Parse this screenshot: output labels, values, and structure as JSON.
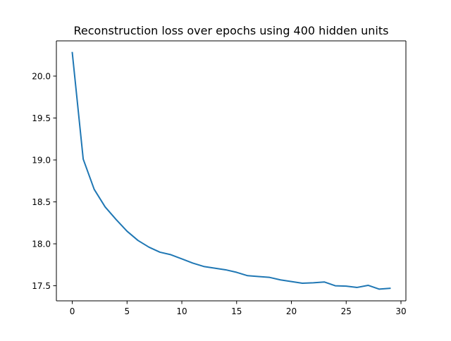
{
  "chart_data": {
    "type": "line",
    "title": "Reconstruction loss over epochs using 400 hidden units",
    "xlabel": "",
    "ylabel": "",
    "xlim": [
      -1.45,
      30.45
    ],
    "ylim": [
      17.32,
      20.42
    ],
    "grid": false,
    "legend": "none",
    "x_ticks": [
      0,
      5,
      10,
      15,
      20,
      25,
      30
    ],
    "x_tick_labels": [
      "0",
      "5",
      "10",
      "15",
      "20",
      "25",
      "30"
    ],
    "y_ticks": [
      17.5,
      18.0,
      18.5,
      19.0,
      19.5,
      20.0
    ],
    "y_tick_labels": [
      "17.5",
      "18.0",
      "18.5",
      "19.0",
      "19.5",
      "20.0"
    ],
    "series": [
      {
        "color": "#1f77b4",
        "x": [
          0,
          1,
          2,
          3,
          4,
          5,
          6,
          7,
          8,
          9,
          10,
          11,
          12,
          13,
          14,
          15,
          16,
          17,
          18,
          19,
          20,
          21,
          22,
          23,
          24,
          25,
          26,
          27,
          28,
          29
        ],
        "y": [
          20.28,
          19.01,
          18.65,
          18.44,
          18.29,
          18.15,
          18.04,
          17.96,
          17.9,
          17.87,
          17.82,
          17.77,
          17.73,
          17.71,
          17.69,
          17.66,
          17.62,
          17.61,
          17.6,
          17.57,
          17.55,
          17.53,
          17.535,
          17.545,
          17.5,
          17.495,
          17.48,
          17.505,
          17.46,
          17.47
        ]
      }
    ]
  }
}
